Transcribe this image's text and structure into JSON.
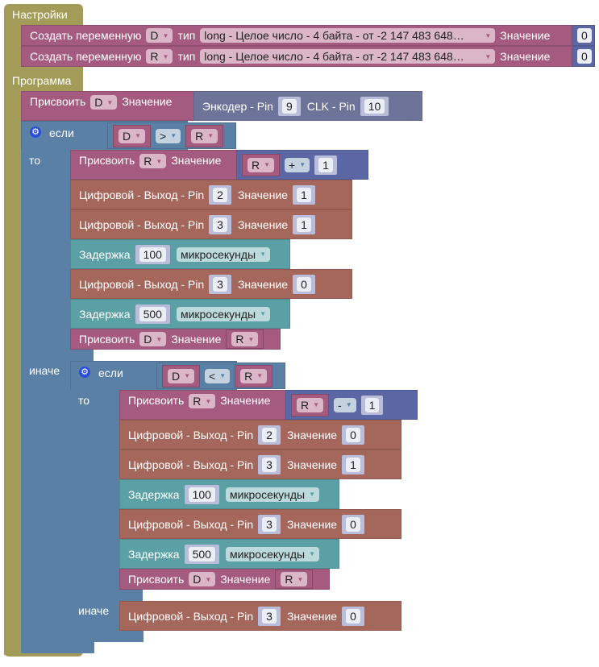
{
  "setup": {
    "title": "Настройки",
    "vars": [
      {
        "label": "Создать переменную",
        "name": "D",
        "type_label": "тип",
        "type": "long - Целое число - 4 байта - от -2 147 483 648…",
        "value_label": "Значение",
        "value": "0"
      },
      {
        "label": "Создать переменную",
        "name": "R",
        "type_label": "тип",
        "type": "long - Целое число - 4 байта - от -2 147 483 648…",
        "value_label": "Значение",
        "value": "0"
      }
    ]
  },
  "program": {
    "title": "Программа",
    "assign": {
      "label": "Присвоить",
      "var": "D",
      "value_label": "Значение",
      "encoder_label": "Энкодер - Pin",
      "pin": "9",
      "clk_label": "CLK - Pin",
      "clk": "10"
    },
    "if": {
      "if_label": "если",
      "then_label": "то",
      "else_label": "иначе",
      "cond": {
        "a": "D",
        "op": ">",
        "b": "R"
      },
      "then": [
        {
          "type": "assign_expr",
          "label": "Присвоить",
          "var": "R",
          "value_label": "Значение",
          "a": "R",
          "op": "+",
          "b": "1"
        },
        {
          "type": "dw",
          "label": "Цифровой - Выход - Pin",
          "pin": "2",
          "value_label": "Значение",
          "value": "1"
        },
        {
          "type": "dw",
          "label": "Цифровой - Выход - Pin",
          "pin": "3",
          "value_label": "Значение",
          "value": "1"
        },
        {
          "type": "delay",
          "label": "Задержка",
          "value": "100",
          "unit": "микросекунды"
        },
        {
          "type": "dw",
          "label": "Цифровой - Выход - Pin",
          "pin": "3",
          "value_label": "Значение",
          "value": "0"
        },
        {
          "type": "delay",
          "label": "Задержка",
          "value": "500",
          "unit": "микросекунды"
        },
        {
          "type": "assign_var",
          "label": "Присвоить",
          "var": "D",
          "value_label": "Значение",
          "src": "R"
        }
      ],
      "else": [
        {
          "type": "if",
          "if_label": "если",
          "then_label": "то",
          "else_label": "иначе",
          "cond": {
            "a": "D",
            "op": "<",
            "b": "R"
          },
          "then": [
            {
              "type": "assign_expr",
              "label": "Присвоить",
              "var": "R",
              "value_label": "Значение",
              "a": "R",
              "op": "-",
              "b": "1"
            },
            {
              "type": "dw",
              "label": "Цифровой - Выход - Pin",
              "pin": "2",
              "value_label": "Значение",
              "value": "0"
            },
            {
              "type": "dw",
              "label": "Цифровой - Выход - Pin",
              "pin": "3",
              "value_label": "Значение",
              "value": "1"
            },
            {
              "type": "delay",
              "label": "Задержка",
              "value": "100",
              "unit": "микросекунды"
            },
            {
              "type": "dw",
              "label": "Цифровой - Выход - Pin",
              "pin": "3",
              "value_label": "Значение",
              "value": "0"
            },
            {
              "type": "delay",
              "label": "Задержка",
              "value": "500",
              "unit": "микросекунды"
            },
            {
              "type": "assign_var",
              "label": "Присвоить",
              "var": "D",
              "value_label": "Значение",
              "src": "R"
            }
          ],
          "else": [
            {
              "type": "dw",
              "label": "Цифровой - Выход - Pin",
              "pin": "3",
              "value_label": "Значение",
              "value": "0"
            }
          ]
        }
      ]
    }
  }
}
